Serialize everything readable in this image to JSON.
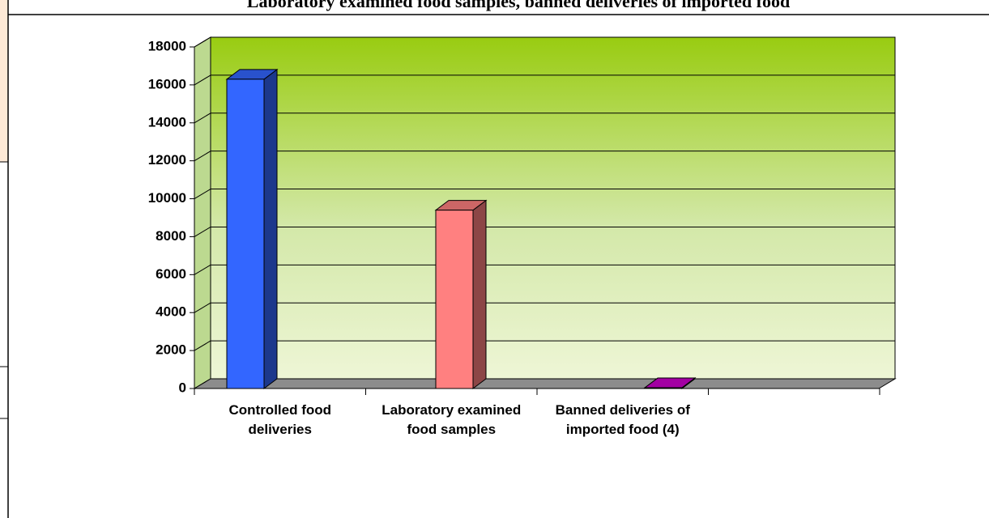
{
  "chart_data": {
    "type": "bar3d",
    "title": "Laboratory examined food samples, banned deliveries of imported food",
    "categories": [
      "Controlled food deliveries",
      "Laboratory examined food samples",
      "Banned deliveries of imported food (4)"
    ],
    "series": [
      {
        "values": [
          16300,
          9400,
          40
        ],
        "colors": [
          "#3366ff",
          "#ff8080",
          "#cc00cc"
        ]
      }
    ],
    "ylim": [
      0,
      18000
    ],
    "yticks": [
      0,
      2000,
      4000,
      6000,
      8000,
      10000,
      12000,
      14000,
      16000,
      18000
    ],
    "grid": true
  }
}
